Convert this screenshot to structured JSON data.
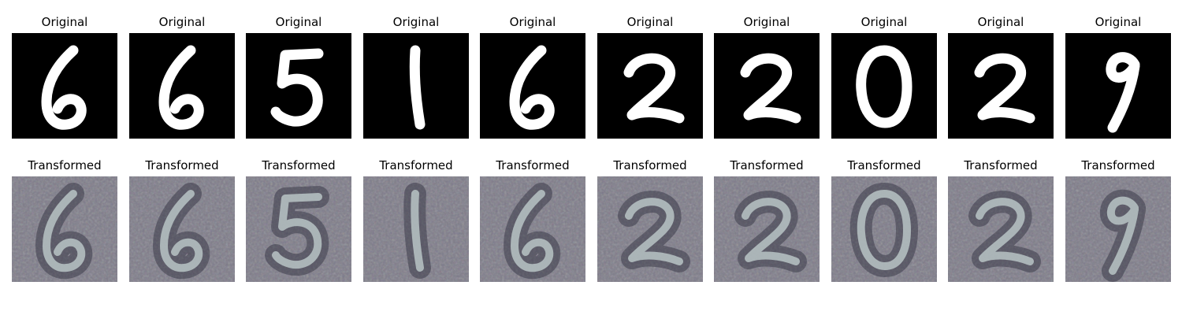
{
  "figure": {
    "rows": [
      {
        "title": "Original",
        "style": "original",
        "digits": [
          "6",
          "6",
          "5",
          "1",
          "6",
          "2",
          "2",
          "0",
          "2",
          "9"
        ]
      },
      {
        "title": "Transformed",
        "style": "transformed",
        "digits": [
          "6",
          "6",
          "5",
          "1",
          "6",
          "2",
          "2",
          "0",
          "2",
          "9"
        ]
      }
    ]
  },
  "colors": {
    "original_bg": "#000000",
    "original_stroke": "#ffffff",
    "transformed_bg": "#7d7b88",
    "transformed_stroke": "#b8c4c6"
  }
}
